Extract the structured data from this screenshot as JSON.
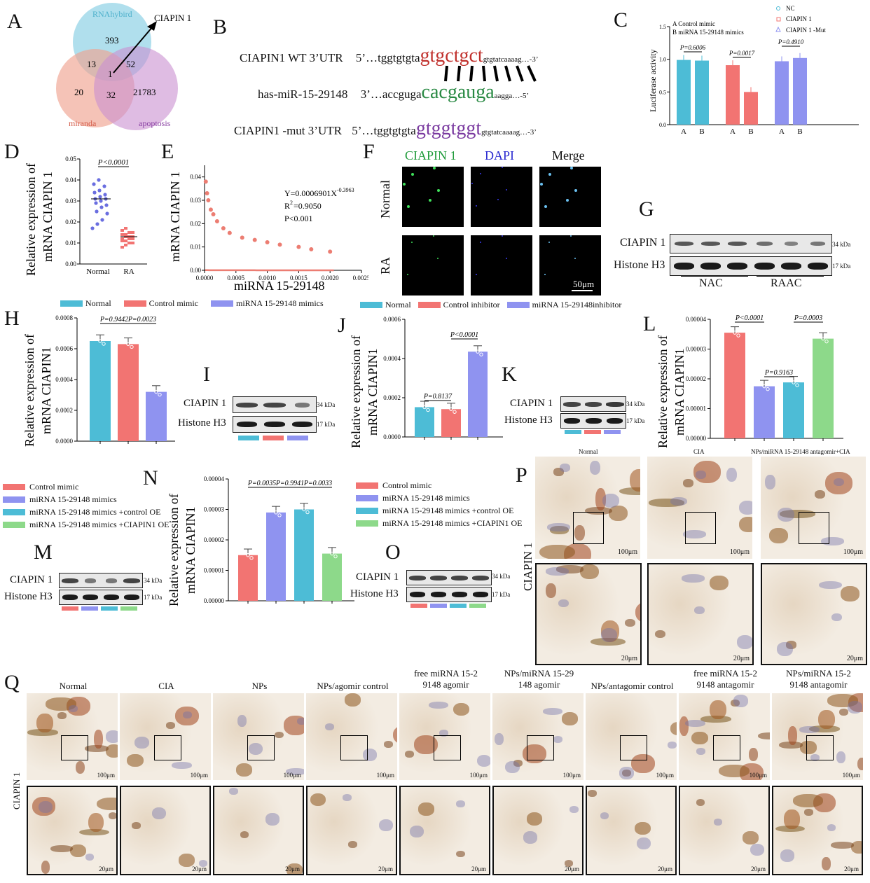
{
  "panels": {
    "A": "A",
    "B": "B",
    "C": "C",
    "D": "D",
    "E": "E",
    "F": "F",
    "G": "G",
    "H": "H",
    "I": "I",
    "J": "J",
    "K": "K",
    "L": "L",
    "M": "M",
    "N": "N",
    "O": "O",
    "P": "P",
    "Q": "Q"
  },
  "venn": {
    "sets": [
      "RNAhybird",
      "miranda",
      "apoptosis"
    ],
    "counts": [
      "393",
      "13",
      "52",
      "1",
      "20",
      "32",
      "21783"
    ],
    "arrow_label": "CIAPIN 1",
    "colors": [
      "#8fd2e6",
      "#f0a391",
      "#c98fd0"
    ]
  },
  "sequences": {
    "wt_label": "CIAPIN1 WT 3’UTR",
    "wt_prefix": "5’…tggtgtgta",
    "wt_seed": "gtgctgct",
    "wt_suffix": "gtgtatcaaaag…-3’",
    "mir_label": "has-miR-15-29148",
    "mir_prefix": "3’…accguga",
    "mir_seed": "cacgauga",
    "mir_suffix": "aagga…-5’",
    "mut_label": "CIAPIN1 -mut 3’UTR",
    "mut_prefix": "5’…tggtgtgta",
    "mut_seed": "gtggtggt",
    "mut_suffix": "gtgtatcaaaag…-3’"
  },
  "panel_c": {
    "ylabel": "Luciferase activity",
    "note_a": "A  Control mimic",
    "note_b": "B  miRNA 15-29148 mimics",
    "legend": [
      "NC",
      "CIAPIN 1",
      "CIAPIN 1 -Mut"
    ],
    "yticks": [
      "0.0",
      "0.5",
      "1.0",
      "1.5"
    ],
    "groups": [
      "A",
      "B",
      "A",
      "B",
      "A",
      "B"
    ],
    "values": [
      0.99,
      0.98,
      0.91,
      0.5,
      0.97,
      1.02
    ],
    "pvals": [
      "P=0.6006",
      "P=0.0017",
      "P=0.4910"
    ],
    "colors": [
      "#4dbcd6",
      "#f27472",
      "#8f93f0"
    ]
  },
  "panel_d": {
    "ylabel1": "Relative expression of",
    "ylabel2": "mRNA CIAPIN 1",
    "yticks": [
      "0.00",
      "0.01",
      "0.02",
      "0.03",
      "0.04",
      "0.05"
    ],
    "categories": [
      "Normal",
      "RA"
    ],
    "pval": "P<0.0001",
    "normal_points": [
      0.017,
      0.019,
      0.021,
      0.024,
      0.025,
      0.027,
      0.028,
      0.029,
      0.03,
      0.031,
      0.031,
      0.032,
      0.033,
      0.034,
      0.035,
      0.037,
      0.038,
      0.04
    ],
    "ra_points": [
      0.008,
      0.009,
      0.01,
      0.01,
      0.011,
      0.011,
      0.012,
      0.012,
      0.012,
      0.013,
      0.013,
      0.013,
      0.014,
      0.014,
      0.015,
      0.015,
      0.016,
      0.017
    ]
  },
  "panel_e": {
    "ylabel": "mRNA CIAPIN 1",
    "xlabel": "miRNA 15-29148",
    "xticks": [
      "0.0000",
      "0.0005",
      "0.0010",
      "0.0015",
      "0.0020",
      "0.0025"
    ],
    "yticks": [
      "0.00",
      "0.01",
      "0.02",
      "0.03",
      "0.04"
    ],
    "eq": "Y=0.0006901X",
    "eq_exp": "-0.3963",
    "r2": "R",
    "r2_val": "=0.9050",
    "p": "P<0.001"
  },
  "panel_f": {
    "cols": [
      "CIAPIN 1",
      "DAPI",
      "Merge"
    ],
    "rows": [
      "Normal",
      "RA"
    ],
    "scale": "50μm"
  },
  "panel_g": {
    "rows": [
      "CIAPIN 1",
      "Histone H3"
    ],
    "sizes": [
      "34 kDa",
      "17 kDa"
    ],
    "groups": [
      "NAC",
      "RAAC"
    ]
  },
  "panel_h": {
    "legend": [
      "Normal",
      "Control mimic",
      "miRNA 15-29148 mimics"
    ],
    "ylabel1": "Relative expression of",
    "ylabel2": "mRNA CIAPIN1",
    "yticks": [
      "0.0000",
      "0.0002",
      "0.0004",
      "0.0006",
      "0.0008"
    ],
    "values": [
      0.00065,
      0.00063,
      0.00032
    ],
    "pvals": [
      "P=0.9442",
      "P=0.0023"
    ]
  },
  "panel_i": {
    "rows": [
      "CIAPIN 1",
      "Histone H3"
    ],
    "sizes": [
      "34 kDa",
      "17 kDa"
    ]
  },
  "panel_j": {
    "legend": [
      "Normal",
      "Control inhibitor",
      "miRNA 15-29148inhibitor"
    ],
    "ylabel1": "Relative expression of",
    "ylabel2": "mRNA CIAPIN1",
    "yticks": [
      "0.0000",
      "0.0002",
      "0.0004",
      "0.0006"
    ],
    "values": [
      0.000152,
      0.000142,
      0.000435
    ],
    "pvals": [
      "P=0.8137",
      "P<0.0001"
    ]
  },
  "panel_k": {
    "rows": [
      "CIAPIN 1",
      "Histone H3"
    ],
    "sizes": [
      "34 kDa",
      "17 kDa"
    ]
  },
  "panel_l": {
    "ylabel1": "Relative expression of",
    "ylabel2": "mRNA CIAPIN1",
    "yticks": [
      "0.00000",
      "0.00001",
      "0.00002",
      "0.00003",
      "0.00004"
    ],
    "values": [
      3.55e-05,
      1.75e-05,
      1.88e-05,
      3.35e-05
    ],
    "pvals": [
      "P<0.0001",
      "P=0.9163",
      "P=0.0003"
    ],
    "colors": [
      "#f27472",
      "#8f93f0",
      "#4dbcd6",
      "#8dd98a"
    ]
  },
  "panel_m": {
    "legend": [
      "Control mimic",
      "miRNA 15-29148 mimics",
      "miRNA 15-29148 mimics +control OE",
      "miRNA 15-29148 mimics +CIAPIN1 OE"
    ],
    "rows": [
      "CIAPIN 1",
      "Histone H3"
    ],
    "sizes": [
      "34 kDa",
      "17 kDa"
    ]
  },
  "panel_n": {
    "ylabel1": "Relative expression of",
    "ylabel2": "mRNA CIAPIN1",
    "yticks": [
      "0.00000",
      "0.00001",
      "0.00002",
      "0.00003",
      "0.00004"
    ],
    "values": [
      1.5e-05,
      2.9e-05,
      3e-05,
      1.55e-05
    ],
    "pvals": [
      "P=0.0035",
      "P=0.9941",
      "P=0.0033"
    ],
    "legend": [
      "Control mimic",
      "miRNA 15-29148 mimics",
      "miRNA 15-29148 mimics +control OE",
      "miRNA 15-29148 mimics +CIAPIN1 OE"
    ]
  },
  "panel_o": {
    "rows": [
      "CIAPIN 1",
      "Histone H3"
    ],
    "sizes": [
      "34 kDa",
      "17 kDa"
    ]
  },
  "panel_p": {
    "cols": [
      "Normal",
      "CIA",
      "NPs/miRNA 15-29148 antagomir+CIA"
    ],
    "side": "CIAPIN 1",
    "scale_top": "100μm",
    "scale_bot": "20μm"
  },
  "panel_q": {
    "cols": [
      "Normal",
      "CIA",
      "NPs",
      "NPs/agomir control",
      "free miRNA 15-2|9148 agomir",
      "NPs/miRNA 15-29|148 agomir",
      "NPs/antagomir control",
      "free miRNA 15-2|9148 antagomir",
      "NPs/miRNA 15-2|9148 antagomir"
    ],
    "side": "CIAPIN 1",
    "scale_top": "100μm",
    "scale_bot": "20μm"
  }
}
